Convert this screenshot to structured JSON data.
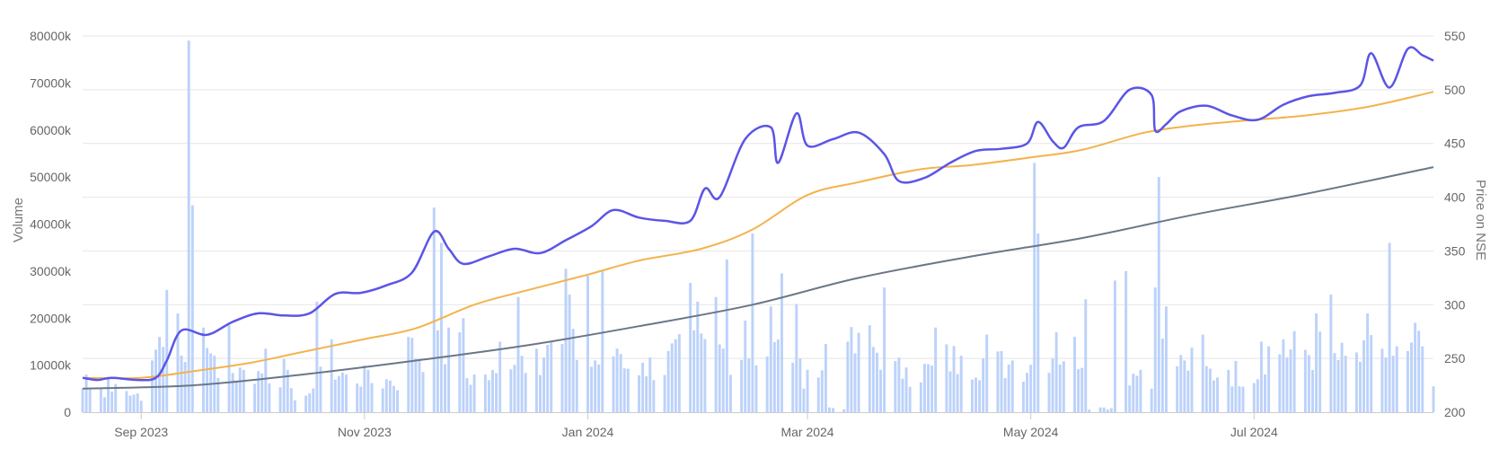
{
  "chart_data": {
    "type": "bar+line",
    "title": "",
    "x_start": "2023-08-16",
    "x_end": "2024-08-19",
    "x_ticks": [
      {
        "date": "2023-09-01",
        "label": "Sep 2023"
      },
      {
        "date": "2023-11-01",
        "label": "Nov 2023"
      },
      {
        "date": "2024-01-01",
        "label": "Jan 2024"
      },
      {
        "date": "2024-03-01",
        "label": "Mar 2024"
      },
      {
        "date": "2024-05-01",
        "label": "May 2024"
      },
      {
        "date": "2024-07-01",
        "label": "Jul 2024"
      }
    ],
    "y_left": {
      "label": "Volume",
      "range": [
        0,
        80000000
      ],
      "ticks": [
        {
          "value": 0,
          "label": "0"
        },
        {
          "value": 10000000,
          "label": "10000k"
        },
        {
          "value": 20000000,
          "label": "20000k"
        },
        {
          "value": 30000000,
          "label": "30000k"
        },
        {
          "value": 40000000,
          "label": "40000k"
        },
        {
          "value": 50000000,
          "label": "50000k"
        },
        {
          "value": 60000000,
          "label": "60000k"
        },
        {
          "value": 70000000,
          "label": "70000k"
        },
        {
          "value": 80000000,
          "label": "80000k"
        }
      ]
    },
    "y_right": {
      "label": "Price on NSE",
      "range": [
        200,
        550
      ],
      "ticks": [
        {
          "value": 200,
          "label": "200"
        },
        {
          "value": 250,
          "label": "250"
        },
        {
          "value": 300,
          "label": "300"
        },
        {
          "value": 350,
          "label": "350"
        },
        {
          "value": 400,
          "label": "400"
        },
        {
          "value": 450,
          "label": "450"
        },
        {
          "value": 500,
          "label": "500"
        },
        {
          "value": 550,
          "label": "550"
        }
      ]
    },
    "grid": true,
    "colors": {
      "volume": "#bcd2fa",
      "price": "#5b55e6",
      "ma50": "#f3b34c",
      "ma200": "#6a7787",
      "grid": "#e5e5e5",
      "axis": "#cccccc"
    },
    "volume_series": {
      "axis": "left",
      "points": [
        [
          "2023-08-17",
          8000000
        ],
        [
          "2023-08-21",
          5000000
        ],
        [
          "2023-08-23",
          7500000
        ],
        [
          "2023-08-25",
          6000000
        ],
        [
          "2023-08-28",
          4500000
        ],
        [
          "2023-08-31",
          4000000
        ],
        [
          "2023-09-04",
          11000000
        ],
        [
          "2023-09-06",
          16000000
        ],
        [
          "2023-09-08",
          26000000
        ],
        [
          "2023-09-11",
          21000000
        ],
        [
          "2023-09-14",
          79000000
        ],
        [
          "2023-09-15",
          44000000
        ],
        [
          "2023-09-18",
          18000000
        ],
        [
          "2023-09-21",
          12000000
        ],
        [
          "2023-09-25",
          18500000
        ],
        [
          "2023-09-29",
          9000000
        ],
        [
          "2023-10-05",
          13500000
        ],
        [
          "2023-10-11",
          9000000
        ],
        [
          "2023-10-17",
          4000000
        ],
        [
          "2023-10-19",
          23500000
        ],
        [
          "2023-10-23",
          15500000
        ],
        [
          "2023-10-27",
          8000000
        ],
        [
          "2023-11-01",
          10000000
        ],
        [
          "2023-11-07",
          7000000
        ],
        [
          "2023-11-13",
          16000000
        ],
        [
          "2023-11-20",
          43500000
        ],
        [
          "2023-11-22",
          36000000
        ],
        [
          "2023-11-24",
          18000000
        ],
        [
          "2023-11-28",
          20000000
        ],
        [
          "2023-12-04",
          8000000
        ],
        [
          "2023-12-08",
          15000000
        ],
        [
          "2023-12-13",
          24500000
        ],
        [
          "2023-12-18",
          13500000
        ],
        [
          "2023-12-22",
          15000000
        ],
        [
          "2023-12-26",
          30500000
        ],
        [
          "2023-12-27",
          25000000
        ],
        [
          "2024-01-01",
          29000000
        ],
        [
          "2024-01-03",
          11000000
        ],
        [
          "2024-01-05",
          30000000
        ],
        [
          "2024-01-09",
          13500000
        ],
        [
          "2024-01-16",
          10500000
        ],
        [
          "2024-01-23",
          13000000
        ],
        [
          "2024-01-29",
          27500000
        ],
        [
          "2024-01-31",
          23500000
        ],
        [
          "2024-02-05",
          24500000
        ],
        [
          "2024-02-08",
          32500000
        ],
        [
          "2024-02-13",
          19500000
        ],
        [
          "2024-02-15",
          38000000
        ],
        [
          "2024-02-20",
          22500000
        ],
        [
          "2024-02-23",
          29500000
        ],
        [
          "2024-02-27",
          23000000
        ],
        [
          "2024-03-01",
          9000000
        ],
        [
          "2024-03-06",
          14500000
        ],
        [
          "2024-03-07",
          1000000
        ],
        [
          "2024-03-12",
          15000000
        ],
        [
          "2024-03-18",
          18500000
        ],
        [
          "2024-03-22",
          26500000
        ],
        [
          "2024-03-28",
          9500000
        ],
        [
          "2024-04-05",
          18000000
        ],
        [
          "2024-04-12",
          12000000
        ],
        [
          "2024-04-19",
          16500000
        ],
        [
          "2024-04-26",
          11000000
        ],
        [
          "2024-05-02",
          53000000
        ],
        [
          "2024-05-03",
          38000000
        ],
        [
          "2024-05-08",
          17000000
        ],
        [
          "2024-05-16",
          24000000
        ],
        [
          "2024-05-21",
          1000000
        ],
        [
          "2024-05-24",
          28000000
        ],
        [
          "2024-05-27",
          30000000
        ],
        [
          "2024-05-31",
          9000000
        ],
        [
          "2024-06-04",
          26500000
        ],
        [
          "2024-06-05",
          50000000
        ],
        [
          "2024-06-07",
          22500000
        ],
        [
          "2024-06-12",
          11000000
        ],
        [
          "2024-06-17",
          16500000
        ],
        [
          "2024-06-24",
          9000000
        ],
        [
          "2024-07-03",
          15000000
        ],
        [
          "2024-07-09",
          15500000
        ],
        [
          "2024-07-18",
          21000000
        ],
        [
          "2024-07-22",
          25000000
        ],
        [
          "2024-07-26",
          12000000
        ],
        [
          "2024-08-01",
          21000000
        ],
        [
          "2024-08-05",
          13500000
        ],
        [
          "2024-08-07",
          36000000
        ],
        [
          "2024-08-12",
          13000000
        ],
        [
          "2024-08-14",
          19000000
        ],
        [
          "2024-08-16",
          14000000
        ],
        [
          "2024-08-19",
          5500000
        ]
      ]
    },
    "price_series": {
      "axis": "right",
      "points": [
        [
          "2023-08-16",
          232
        ],
        [
          "2023-08-20",
          230
        ],
        [
          "2023-08-24",
          232
        ],
        [
          "2023-08-31",
          230
        ],
        [
          "2023-09-05",
          232
        ],
        [
          "2023-09-08",
          248
        ],
        [
          "2023-09-12",
          276
        ],
        [
          "2023-09-19",
          272
        ],
        [
          "2023-09-26",
          284
        ],
        [
          "2023-10-03",
          292
        ],
        [
          "2023-10-10",
          290
        ],
        [
          "2023-10-17",
          292
        ],
        [
          "2023-10-24",
          310
        ],
        [
          "2023-10-31",
          311
        ],
        [
          "2023-11-07",
          318
        ],
        [
          "2023-11-14",
          330
        ],
        [
          "2023-11-20",
          368
        ],
        [
          "2023-11-24",
          352
        ],
        [
          "2023-11-28",
          338
        ],
        [
          "2023-12-05",
          345
        ],
        [
          "2023-12-12",
          352
        ],
        [
          "2023-12-19",
          348
        ],
        [
          "2023-12-26",
          360
        ],
        [
          "2024-01-02",
          373
        ],
        [
          "2024-01-08",
          388
        ],
        [
          "2024-01-15",
          381
        ],
        [
          "2024-01-22",
          378
        ],
        [
          "2024-01-29",
          378
        ],
        [
          "2024-02-02",
          408
        ],
        [
          "2024-02-06",
          400
        ],
        [
          "2024-02-13",
          454
        ],
        [
          "2024-02-20",
          465
        ],
        [
          "2024-02-22",
          432
        ],
        [
          "2024-02-27",
          478
        ],
        [
          "2024-03-01",
          448
        ],
        [
          "2024-03-08",
          454
        ],
        [
          "2024-03-15",
          460
        ],
        [
          "2024-03-22",
          440
        ],
        [
          "2024-03-26",
          415
        ],
        [
          "2024-04-02",
          418
        ],
        [
          "2024-04-09",
          432
        ],
        [
          "2024-04-16",
          443
        ],
        [
          "2024-04-23",
          445
        ],
        [
          "2024-04-30",
          450
        ],
        [
          "2024-05-03",
          470
        ],
        [
          "2024-05-07",
          452
        ],
        [
          "2024-05-10",
          446
        ],
        [
          "2024-05-14",
          465
        ],
        [
          "2024-05-21",
          471
        ],
        [
          "2024-05-28",
          500
        ],
        [
          "2024-06-03",
          495
        ],
        [
          "2024-06-04",
          462
        ],
        [
          "2024-06-07",
          468
        ],
        [
          "2024-06-11",
          480
        ],
        [
          "2024-06-18",
          485
        ],
        [
          "2024-06-25",
          476
        ],
        [
          "2024-07-02",
          472
        ],
        [
          "2024-07-09",
          486
        ],
        [
          "2024-07-16",
          494
        ],
        [
          "2024-07-23",
          497
        ],
        [
          "2024-07-30",
          504
        ],
        [
          "2024-08-02",
          534
        ],
        [
          "2024-08-07",
          502
        ],
        [
          "2024-08-12",
          538
        ],
        [
          "2024-08-16",
          532
        ],
        [
          "2024-08-19",
          527
        ]
      ]
    },
    "ma50_series": {
      "axis": "right",
      "points": [
        [
          "2023-08-16",
          232
        ],
        [
          "2023-09-01",
          232
        ],
        [
          "2023-09-15",
          238
        ],
        [
          "2023-10-01",
          246
        ],
        [
          "2023-10-15",
          256
        ],
        [
          "2023-11-01",
          268
        ],
        [
          "2023-11-15",
          278
        ],
        [
          "2023-12-01",
          300
        ],
        [
          "2023-12-15",
          313
        ],
        [
          "2024-01-01",
          328
        ],
        [
          "2024-01-15",
          341
        ],
        [
          "2024-02-01",
          352
        ],
        [
          "2024-02-15",
          370
        ],
        [
          "2024-03-01",
          402
        ],
        [
          "2024-03-15",
          414
        ],
        [
          "2024-04-01",
          426
        ],
        [
          "2024-04-15",
          430
        ],
        [
          "2024-05-01",
          437
        ],
        [
          "2024-05-15",
          444
        ],
        [
          "2024-06-01",
          460
        ],
        [
          "2024-06-15",
          467
        ],
        [
          "2024-07-01",
          472
        ],
        [
          "2024-07-15",
          476
        ],
        [
          "2024-08-01",
          484
        ],
        [
          "2024-08-19",
          498
        ]
      ]
    },
    "ma200_series": {
      "axis": "right",
      "points": [
        [
          "2023-08-16",
          222
        ],
        [
          "2023-09-15",
          225
        ],
        [
          "2023-10-15",
          235
        ],
        [
          "2023-11-15",
          248
        ],
        [
          "2023-12-15",
          262
        ],
        [
          "2024-01-15",
          280
        ],
        [
          "2024-02-15",
          300
        ],
        [
          "2024-03-15",
          325
        ],
        [
          "2024-04-15",
          345
        ],
        [
          "2024-05-15",
          362
        ],
        [
          "2024-06-15",
          384
        ],
        [
          "2024-07-15",
          403
        ],
        [
          "2024-08-19",
          428
        ]
      ]
    }
  }
}
